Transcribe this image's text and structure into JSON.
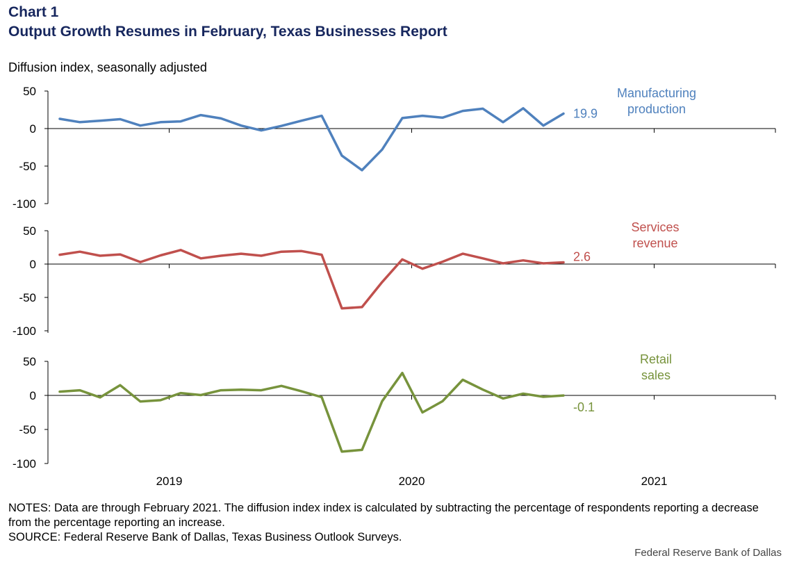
{
  "header": {
    "chart_label": "Chart 1",
    "title": "Output Growth Resumes in February, Texas Businesses Report",
    "y_caption": "Diffusion index, seasonally adjusted"
  },
  "footer": {
    "notes": "NOTES: Data are through February 2021. The diffusion index index is calculated by subtracting the percentage of respondents reporting a decrease from the percentage reporting an increase.",
    "source": "SOURCE: Federal Reserve Bank of Dallas, Texas Business Outlook Surveys.",
    "credit": "Federal Reserve Bank of Dallas"
  },
  "chart_data": {
    "type": "line",
    "x_tick_labels": [
      "2019",
      "2020",
      "2021"
    ],
    "x_domain": [
      0,
      36
    ],
    "x_tick_positions": [
      6,
      18,
      30
    ],
    "panels": [
      {
        "name": "Manufacturing production",
        "label_lines": [
          "Manufacturing",
          "production"
        ],
        "end_label": "19.9",
        "color": "#4f81bd",
        "ylim": [
          -100,
          50
        ],
        "yticks": [
          "50",
          "0",
          "-50",
          "-100"
        ],
        "values": [
          13,
          8.5,
          10.5,
          12.5,
          4,
          8.5,
          9.5,
          18,
          13.5,
          4,
          -2.5,
          3.5,
          10.5,
          17,
          -36,
          -55.5,
          -28,
          14,
          17,
          14.5,
          23.5,
          26.5,
          8.5,
          27,
          4,
          19.9
        ]
      },
      {
        "name": "Services revenue",
        "label_lines": [
          "Services",
          "revenue"
        ],
        "end_label": "2.6",
        "color": "#c0504d",
        "ylim": [
          -100,
          50
        ],
        "yticks": [
          "50",
          "0",
          "-50",
          "-100"
        ],
        "values": [
          14,
          18.5,
          12.5,
          14.5,
          3,
          13,
          21,
          8.5,
          12.5,
          15.5,
          12.5,
          18.5,
          19.5,
          14,
          -66.5,
          -64.5,
          -27,
          7,
          -7,
          3.5,
          15.5,
          8.5,
          1,
          5.5,
          1,
          2.6
        ]
      },
      {
        "name": "Retail sales",
        "label_lines": [
          "Retail",
          "sales"
        ],
        "end_label": "-0.1",
        "color": "#77933c",
        "ylim": [
          -100,
          50
        ],
        "yticks": [
          "50",
          "0",
          "-50",
          "-100"
        ],
        "values": [
          5.5,
          7.5,
          -3,
          15,
          -9,
          -7,
          3.5,
          0.5,
          7.5,
          8.5,
          7.5,
          14,
          6,
          -2.5,
          -82.5,
          -80,
          -8.5,
          33,
          -25,
          -8.5,
          23,
          8.5,
          -4.5,
          2.5,
          -2,
          -0.1
        ]
      }
    ]
  }
}
